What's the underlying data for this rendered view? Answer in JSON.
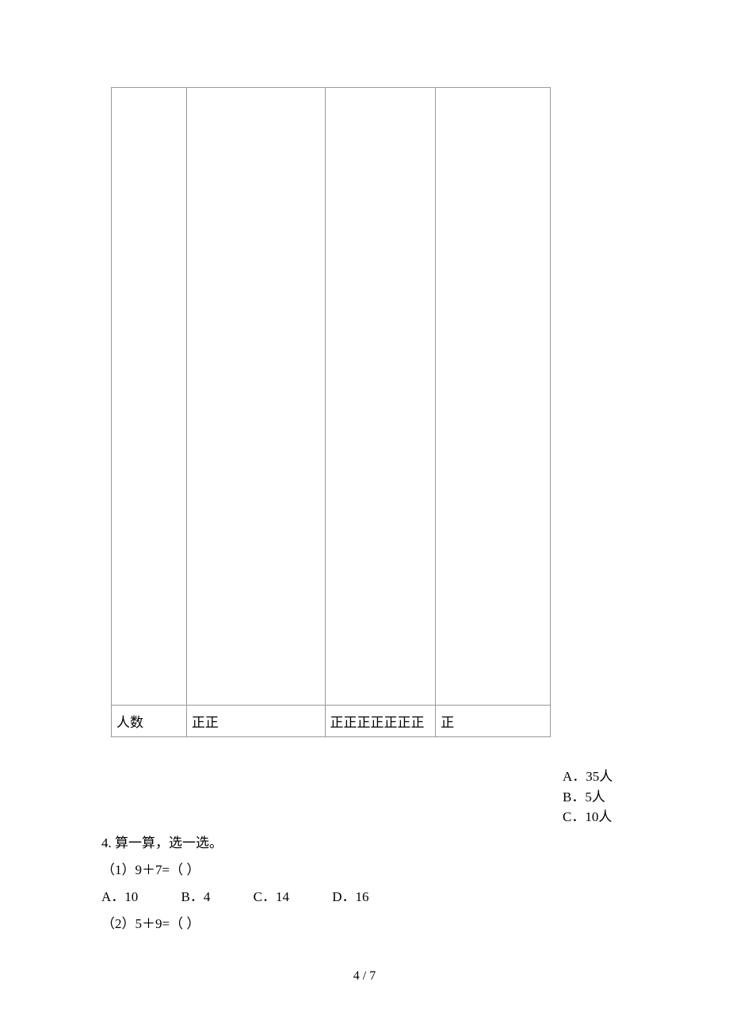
{
  "table": {
    "row_label": "人数",
    "cells": {
      "col2": "正正",
      "col3": "正正正正正正正",
      "col4": "正"
    }
  },
  "answers": {
    "a": "A．35人",
    "b": "B．5人",
    "c": "C．10人"
  },
  "question4": {
    "title": "4. 算一算，选一选。",
    "sub1": "（1）9＋7=（   ）",
    "options": {
      "a": "A．10",
      "b": "B．4",
      "c": "C．14",
      "d": "D．16"
    },
    "sub2": "（2）5＋9=（   ）"
  },
  "page_number": "4 / 7"
}
